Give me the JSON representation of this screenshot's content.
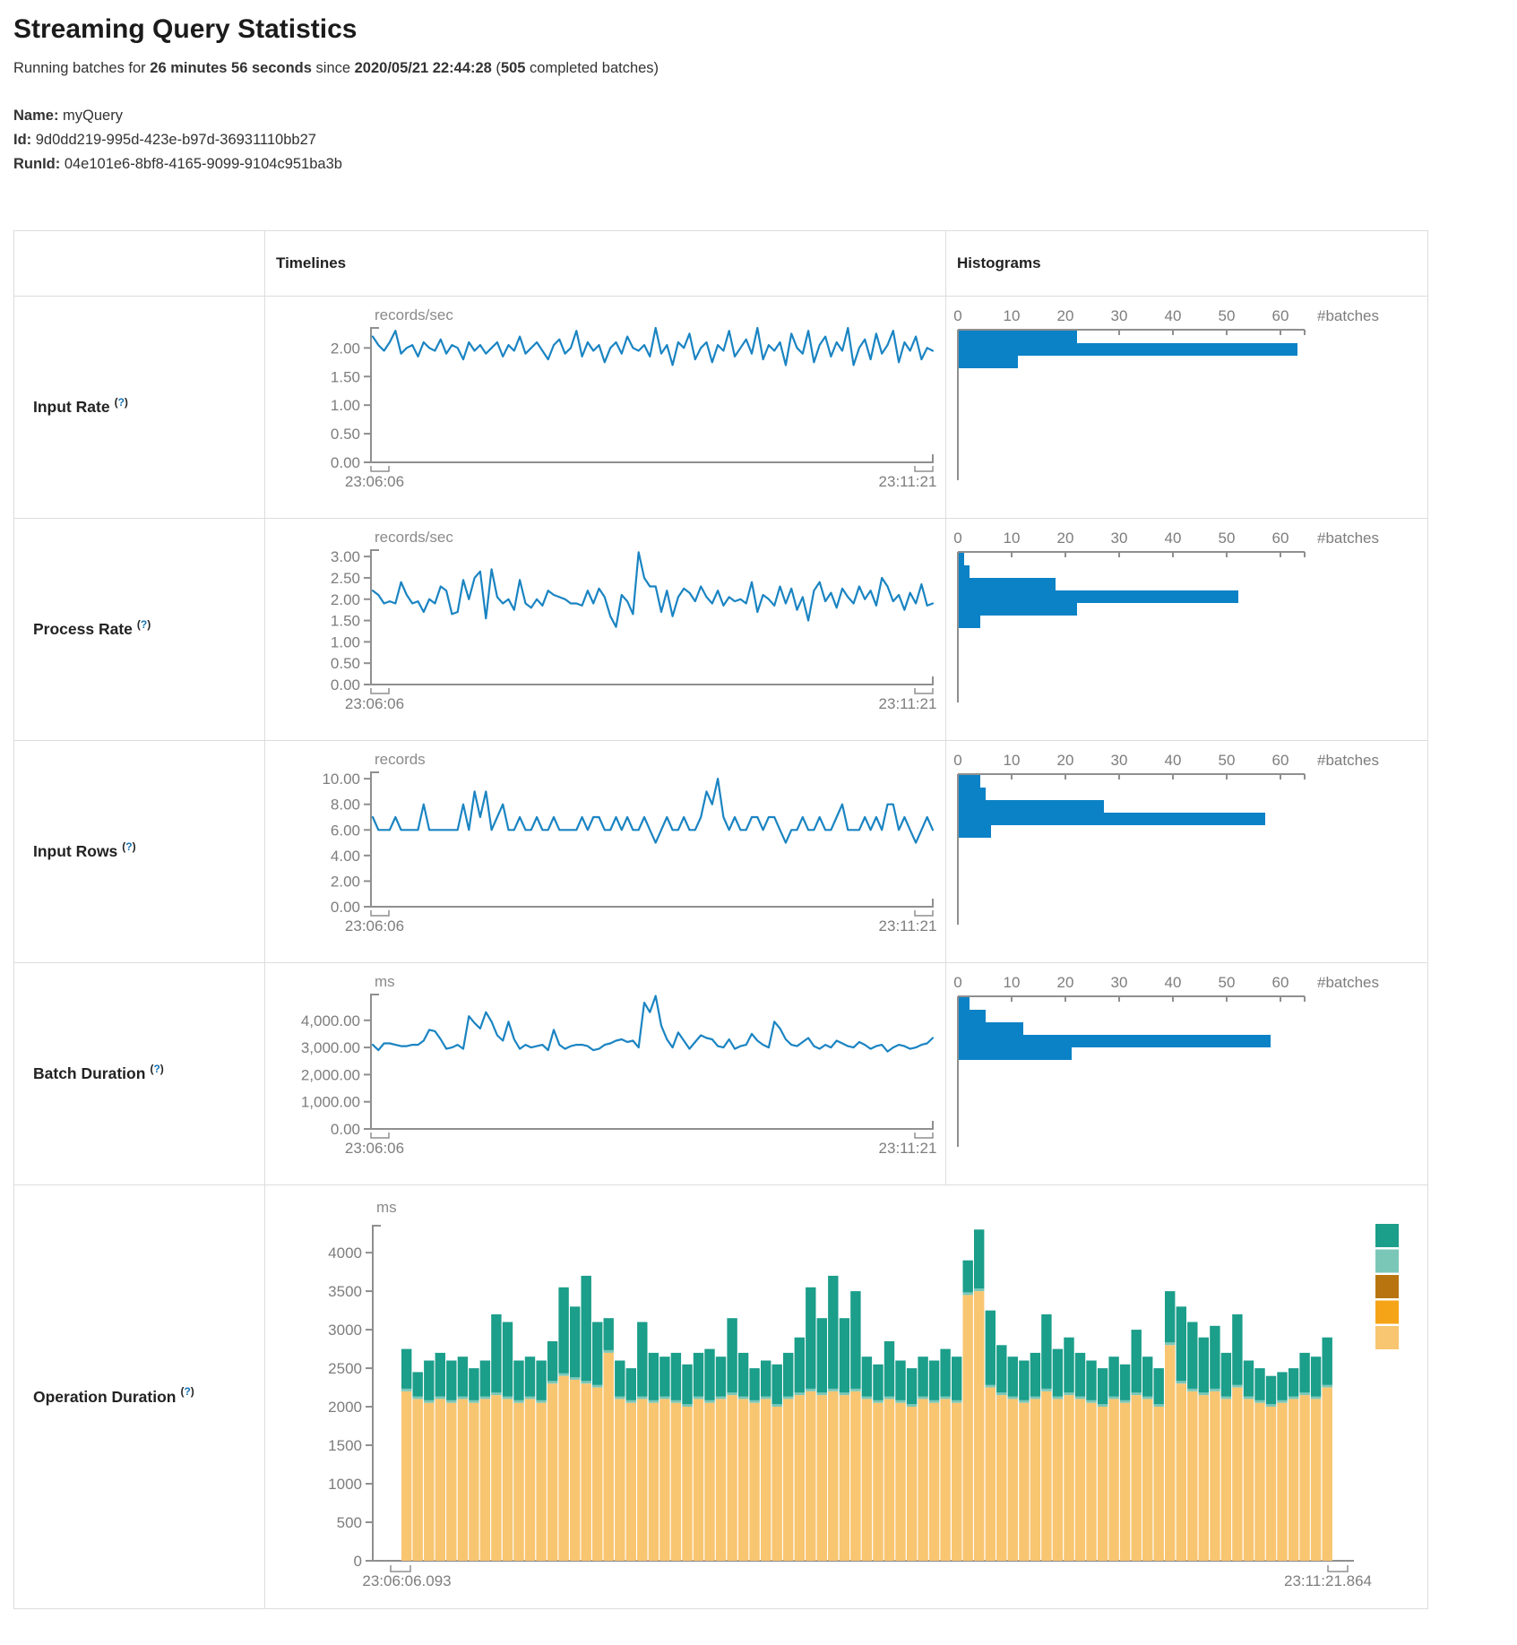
{
  "page": {
    "title": "Streaming Query Statistics",
    "subtitle_prefix": "Running batches for ",
    "duration": "26 minutes 56 seconds",
    "subtitle_mid": " since ",
    "start_time": "2020/05/21 22:44:28",
    "paren_open": " (",
    "completed_batches": "505",
    "subtitle_suffix": " completed batches)",
    "name_label": "Name:",
    "name_value": " myQuery",
    "id_label": "Id:",
    "id_value": " 9d0dd219-995d-423e-b97d-36931110bb27",
    "runid_label": "RunId:",
    "runid_value": " 04e101e6-8bf8-4165-9099-9104c951ba3b"
  },
  "table": {
    "col_timelines": "Timelines",
    "col_histograms": "Histograms",
    "help_open": "(",
    "help_mark": "?",
    "help_close": ")"
  },
  "rows": [
    {
      "label": "Input Rate"
    },
    {
      "label": "Process Rate"
    },
    {
      "label": "Input Rows"
    },
    {
      "label": "Batch Duration"
    },
    {
      "label": "Operation Duration"
    }
  ],
  "colors": {
    "timeline_line": "#1a84c2",
    "histogram_bar": "#0b82c6",
    "axis": "#8f8f8f",
    "axis_text": "#7d7d7d",
    "op_base": "#f8c571",
    "op_mid": "#7ac7b8",
    "op_top": "#1b9e8a",
    "legend": [
      "#1b9e8a",
      "#7ac7b8",
      "#b8750f",
      "#f5a418",
      "#f8c571"
    ]
  },
  "chart_data": {
    "tl0": {
      "type": "line",
      "title": "Input Rate timeline",
      "unit": "records/sec",
      "x_start": "23:06:06",
      "x_end": "23:11:21",
      "ymax": 2.35,
      "yticks": [
        {
          "v": 0,
          "l": "0.00"
        },
        {
          "v": 0.5,
          "l": "0.50"
        },
        {
          "v": 1,
          "l": "1.00"
        },
        {
          "v": 1.5,
          "l": "1.50"
        },
        {
          "v": 2,
          "l": "2.00"
        }
      ],
      "values": [
        2.2,
        2.05,
        1.95,
        2.1,
        2.3,
        1.9,
        2.0,
        2.05,
        1.85,
        2.1,
        2.0,
        1.95,
        2.15,
        1.9,
        2.05,
        2.0,
        1.8,
        2.1,
        1.95,
        2.05,
        1.9,
        2.0,
        2.1,
        1.85,
        2.05,
        1.95,
        2.2,
        1.9,
        2.0,
        2.1,
        1.95,
        1.8,
        2.05,
        2.15,
        1.9,
        2.0,
        2.3,
        1.85,
        2.1,
        1.95,
        2.05,
        1.75,
        2.0,
        2.1,
        1.9,
        2.2,
        2.0,
        1.95,
        2.05,
        1.85,
        2.35,
        1.9,
        2.05,
        1.7,
        2.1,
        2.0,
        2.25,
        1.8,
        2.0,
        2.1,
        1.75,
        2.05,
        1.95,
        2.3,
        1.85,
        2.0,
        2.15,
        1.9,
        2.35,
        1.8,
        2.05,
        1.95,
        2.1,
        1.7,
        2.25,
        2.0,
        1.9,
        2.3,
        1.75,
        2.05,
        2.2,
        1.85,
        2.1,
        1.95,
        2.35,
        1.7,
        2.0,
        2.15,
        1.8,
        2.25,
        1.9,
        2.05,
        2.3,
        1.75,
        2.1,
        1.95,
        2.2,
        1.8,
        2.0,
        1.95
      ]
    },
    "hg0": {
      "type": "histogram",
      "title": "Input Rate histogram",
      "axis_label": "#batches",
      "xticks": [
        0,
        10,
        20,
        30,
        40,
        50,
        60
      ],
      "axmax": 64.5,
      "bins": [
        22,
        63,
        11
      ]
    },
    "tl1": {
      "type": "line",
      "title": "Process Rate timeline",
      "unit": "records/sec",
      "x_start": "23:06:06",
      "x_end": "23:11:21",
      "ymax": 3.15,
      "yticks": [
        {
          "v": 0,
          "l": "0.00"
        },
        {
          "v": 0.5,
          "l": "0.50"
        },
        {
          "v": 1,
          "l": "1.00"
        },
        {
          "v": 1.5,
          "l": "1.50"
        },
        {
          "v": 2,
          "l": "2.00"
        },
        {
          "v": 2.5,
          "l": "2.50"
        },
        {
          "v": 3,
          "l": "3.00"
        }
      ],
      "values": [
        2.2,
        2.1,
        1.9,
        1.95,
        1.9,
        2.4,
        2.1,
        1.9,
        1.95,
        1.7,
        2.0,
        1.9,
        2.3,
        2.2,
        1.65,
        1.7,
        2.45,
        2.0,
        2.5,
        2.65,
        1.55,
        2.7,
        2.05,
        1.9,
        2.0,
        1.75,
        2.45,
        1.9,
        1.8,
        2.0,
        1.85,
        2.2,
        2.1,
        2.05,
        2.0,
        1.9,
        1.9,
        1.85,
        2.2,
        1.9,
        2.25,
        2.05,
        1.6,
        1.35,
        2.1,
        1.95,
        1.65,
        3.1,
        2.5,
        2.3,
        2.3,
        1.7,
        2.2,
        1.6,
        2.05,
        2.25,
        2.15,
        1.95,
        2.3,
        2.05,
        1.9,
        2.2,
        1.85,
        2.05,
        1.95,
        2.0,
        1.9,
        2.4,
        1.7,
        2.1,
        2.0,
        1.85,
        2.3,
        1.9,
        2.25,
        1.75,
        2.05,
        1.5,
        2.2,
        2.4,
        1.95,
        2.15,
        1.8,
        2.25,
        2.05,
        1.9,
        2.3,
        2.0,
        2.2,
        1.85,
        2.5,
        2.3,
        1.95,
        2.1,
        1.75,
        2.15,
        1.9,
        2.35,
        1.85,
        1.9
      ]
    },
    "hg1": {
      "type": "histogram",
      "title": "Process Rate histogram",
      "axis_label": "#batches",
      "xticks": [
        0,
        10,
        20,
        30,
        40,
        50,
        60
      ],
      "axmax": 64.5,
      "bins": [
        1,
        2,
        18,
        52,
        22,
        4
      ]
    },
    "tl2": {
      "type": "line",
      "title": "Input Rows timeline",
      "unit": "records",
      "x_start": "23:06:06",
      "x_end": "23:11:21",
      "ymax": 10.5,
      "yticks": [
        {
          "v": 0,
          "l": "0.00"
        },
        {
          "v": 2,
          "l": "2.00"
        },
        {
          "v": 4,
          "l": "4.00"
        },
        {
          "v": 6,
          "l": "6.00"
        },
        {
          "v": 8,
          "l": "8.00"
        },
        {
          "v": 10,
          "l": "10.00"
        }
      ],
      "values": [
        7,
        6,
        6,
        6,
        7,
        6,
        6,
        6,
        6,
        8,
        6,
        6,
        6,
        6,
        6,
        6,
        8,
        6,
        9,
        7,
        9,
        6,
        7,
        8,
        6,
        6,
        7,
        6,
        6,
        7,
        6,
        6,
        7,
        6,
        6,
        6,
        6,
        7,
        6,
        7,
        7,
        6,
        6,
        7,
        6,
        7,
        6,
        6,
        7,
        6,
        5,
        6,
        7,
        6,
        6,
        7,
        6,
        6,
        7,
        9,
        8,
        10,
        7,
        6,
        7,
        6,
        6,
        7,
        7,
        6,
        7,
        7,
        6,
        5,
        6,
        6,
        7,
        6,
        6,
        7,
        6,
        6,
        7,
        8,
        6,
        6,
        6,
        7,
        6,
        7,
        6,
        8,
        8,
        6,
        7,
        6,
        5,
        6,
        7,
        6
      ]
    },
    "hg2": {
      "type": "histogram",
      "title": "Input Rows histogram",
      "axis_label": "#batches",
      "xticks": [
        0,
        10,
        20,
        30,
        40,
        50,
        60
      ],
      "axmax": 64.5,
      "bins": [
        4,
        5,
        27,
        57,
        6
      ]
    },
    "tl3": {
      "type": "line",
      "title": "Batch Duration timeline",
      "unit": "ms",
      "x_start": "23:06:06",
      "x_end": "23:11:21",
      "ymax": 4950,
      "yticks": [
        {
          "v": 0,
          "l": "0.00"
        },
        {
          "v": 1000,
          "l": "1,000.00"
        },
        {
          "v": 2000,
          "l": "2,000.00"
        },
        {
          "v": 3000,
          "l": "3,000.00"
        },
        {
          "v": 4000,
          "l": "4,000.00"
        }
      ],
      "values": [
        3100,
        2900,
        3150,
        3150,
        3100,
        3050,
        3050,
        3100,
        3100,
        3250,
        3650,
        3600,
        3300,
        2950,
        3000,
        3100,
        2950,
        4150,
        3900,
        3700,
        4300,
        3950,
        3450,
        3250,
        3950,
        3300,
        2950,
        3100,
        3000,
        3050,
        3100,
        2900,
        3650,
        3100,
        2950,
        3050,
        3100,
        3100,
        3050,
        2900,
        2950,
        3100,
        3150,
        3250,
        3300,
        3200,
        3250,
        3000,
        4650,
        4300,
        4900,
        3800,
        3300,
        3000,
        3550,
        3250,
        2950,
        3200,
        3450,
        3350,
        3300,
        3050,
        3000,
        3300,
        2950,
        3050,
        3100,
        3500,
        3250,
        3100,
        3000,
        3950,
        3700,
        3300,
        3100,
        3050,
        3200,
        3350,
        3050,
        2950,
        3100,
        3000,
        3250,
        3150,
        3050,
        3000,
        3200,
        3100,
        2950,
        3050,
        3100,
        2850,
        3000,
        3100,
        3050,
        2950,
        3000,
        3100,
        3150,
        3350
      ]
    },
    "hg3": {
      "type": "histogram",
      "title": "Batch Duration histogram",
      "axis_label": "#batches",
      "xticks": [
        0,
        10,
        20,
        30,
        40,
        50,
        60
      ],
      "axmax": 64.5,
      "bins": [
        2,
        5,
        12,
        58,
        21
      ]
    },
    "op": {
      "type": "stacked-bar",
      "title": "Operation Duration",
      "unit": "ms",
      "x_start": "23:06:06.093",
      "x_end": "23:11:21.864",
      "ymax": 4350,
      "sliver": 35,
      "yticks": [
        {
          "v": 0,
          "l": "0"
        },
        {
          "v": 500,
          "l": "500"
        },
        {
          "v": 1000,
          "l": "1000"
        },
        {
          "v": 1500,
          "l": "1500"
        },
        {
          "v": 2000,
          "l": "2000"
        },
        {
          "v": 2500,
          "l": "2500"
        },
        {
          "v": 3000,
          "l": "3000"
        },
        {
          "v": 3500,
          "l": "3500"
        },
        {
          "v": 4000,
          "l": "4000"
        }
      ],
      "bars": [
        [
          2200,
          2750
        ],
        [
          2100,
          2450
        ],
        [
          2050,
          2600
        ],
        [
          2100,
          2700
        ],
        [
          2050,
          2600
        ],
        [
          2100,
          2650
        ],
        [
          2050,
          2500
        ],
        [
          2100,
          2600
        ],
        [
          2150,
          3200
        ],
        [
          2100,
          3100
        ],
        [
          2050,
          2600
        ],
        [
          2100,
          2650
        ],
        [
          2050,
          2600
        ],
        [
          2300,
          2850
        ],
        [
          2400,
          3550
        ],
        [
          2350,
          3300
        ],
        [
          2300,
          3700
        ],
        [
          2250,
          3100
        ],
        [
          2700,
          3150
        ],
        [
          2100,
          2600
        ],
        [
          2050,
          2500
        ],
        [
          2100,
          3100
        ],
        [
          2050,
          2700
        ],
        [
          2100,
          2650
        ],
        [
          2050,
          2700
        ],
        [
          2000,
          2550
        ],
        [
          2100,
          2700
        ],
        [
          2050,
          2750
        ],
        [
          2100,
          2650
        ],
        [
          2150,
          3150
        ],
        [
          2100,
          2700
        ],
        [
          2050,
          2500
        ],
        [
          2100,
          2600
        ],
        [
          2000,
          2550
        ],
        [
          2100,
          2700
        ],
        [
          2150,
          2900
        ],
        [
          2200,
          3550
        ],
        [
          2150,
          3150
        ],
        [
          2200,
          3700
        ],
        [
          2150,
          3150
        ],
        [
          2200,
          3500
        ],
        [
          2100,
          2650
        ],
        [
          2050,
          2550
        ],
        [
          2100,
          2850
        ],
        [
          2050,
          2600
        ],
        [
          2000,
          2500
        ],
        [
          2100,
          2650
        ],
        [
          2050,
          2600
        ],
        [
          2100,
          2750
        ],
        [
          2050,
          2650
        ],
        [
          3450,
          3900
        ],
        [
          3500,
          4300
        ],
        [
          2250,
          3250
        ],
        [
          2150,
          2800
        ],
        [
          2100,
          2650
        ],
        [
          2050,
          2600
        ],
        [
          2100,
          2700
        ],
        [
          2200,
          3200
        ],
        [
          2100,
          2750
        ],
        [
          2150,
          2900
        ],
        [
          2100,
          2700
        ],
        [
          2050,
          2600
        ],
        [
          2000,
          2500
        ],
        [
          2100,
          2650
        ],
        [
          2050,
          2550
        ],
        [
          2150,
          3000
        ],
        [
          2100,
          2650
        ],
        [
          2000,
          2500
        ],
        [
          2800,
          3500
        ],
        [
          2300,
          3300
        ],
        [
          2200,
          3100
        ],
        [
          2150,
          2900
        ],
        [
          2200,
          3050
        ],
        [
          2100,
          2700
        ],
        [
          2250,
          3200
        ],
        [
          2100,
          2600
        ],
        [
          2050,
          2500
        ],
        [
          2000,
          2400
        ],
        [
          2050,
          2450
        ],
        [
          2100,
          2500
        ],
        [
          2150,
          2700
        ],
        [
          2100,
          2650
        ],
        [
          2250,
          2900
        ]
      ]
    }
  }
}
